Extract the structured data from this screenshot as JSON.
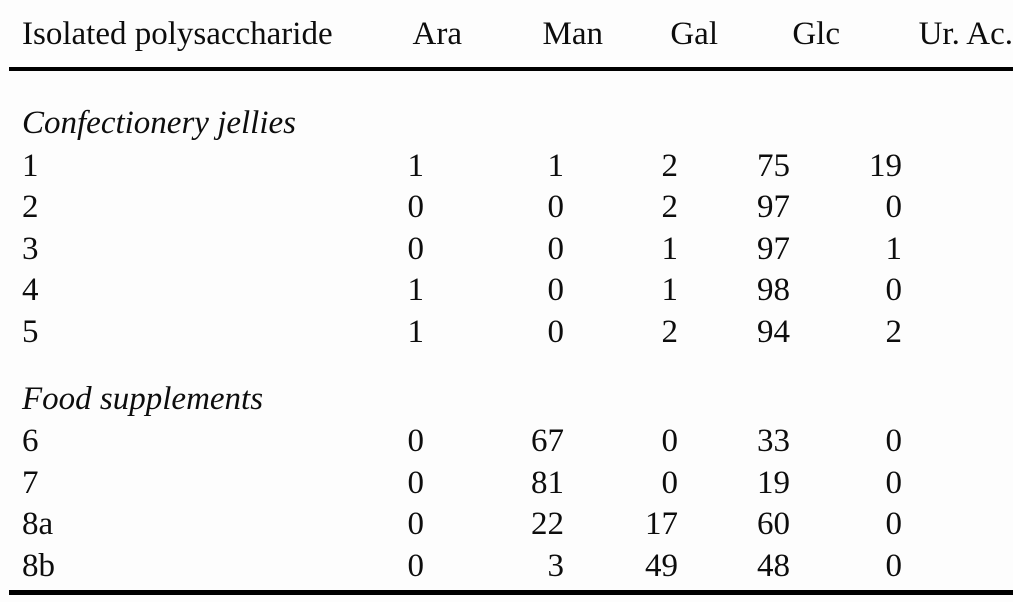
{
  "page": {
    "background_color": "#fdfdfd",
    "text_color": "#0d0d0d",
    "rule_color": "#000000"
  },
  "table": {
    "columns": [
      "Isolated polysaccharide",
      "Ara",
      "Man",
      "Gal",
      "Glc",
      "Ur. Ac."
    ],
    "sections": [
      {
        "label": "Confectionery jellies",
        "rows": [
          {
            "label": "1",
            "values": [
              "1",
              "1",
              "2",
              "75",
              "19"
            ]
          },
          {
            "label": "2",
            "values": [
              "0",
              "0",
              "2",
              "97",
              "0"
            ]
          },
          {
            "label": "3",
            "values": [
              "0",
              "0",
              "1",
              "97",
              "1"
            ]
          },
          {
            "label": "4",
            "values": [
              "1",
              "0",
              "1",
              "98",
              "0"
            ]
          },
          {
            "label": "5",
            "values": [
              "1",
              "0",
              "2",
              "94",
              "2"
            ]
          }
        ]
      },
      {
        "label": "Food supplements",
        "rows": [
          {
            "label": "6",
            "values": [
              "0",
              "67",
              "0",
              "33",
              "0"
            ]
          },
          {
            "label": "7",
            "values": [
              "0",
              "81",
              "0",
              "19",
              "0"
            ]
          },
          {
            "label": "8a",
            "values": [
              "0",
              "22",
              "17",
              "60",
              "0"
            ]
          },
          {
            "label": "8b",
            "values": [
              "0",
              "3",
              "49",
              "48",
              "0"
            ]
          }
        ]
      }
    ]
  }
}
